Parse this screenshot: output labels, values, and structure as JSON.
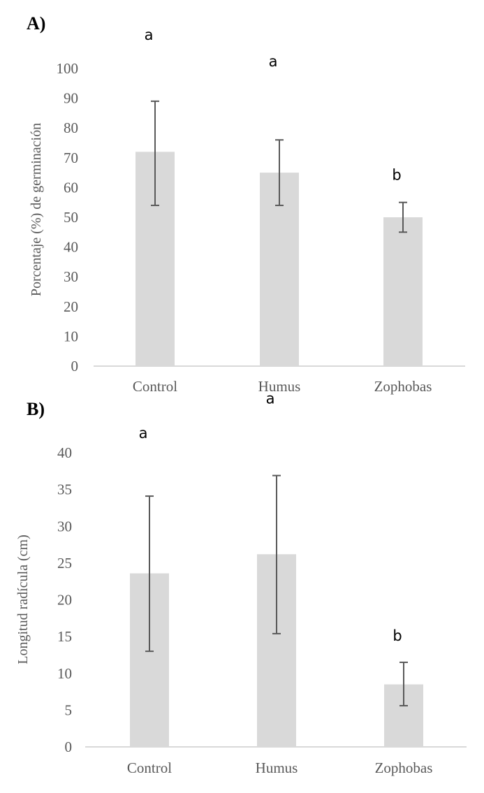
{
  "chart_data": [
    {
      "type": "bar",
      "panel_label": "A)",
      "title": "",
      "xlabel": "",
      "ylabel": "Porcentaje (%) de germinación",
      "categories": [
        "Control",
        "Humus",
        "Zophobas"
      ],
      "values": [
        72,
        65,
        50
      ],
      "error_low": [
        54,
        54,
        45
      ],
      "error_high": [
        89,
        76,
        55
      ],
      "significance_letters": [
        "a",
        "a",
        "b"
      ],
      "ylim": [
        0,
        100
      ],
      "yticks": [
        0,
        10,
        20,
        30,
        40,
        50,
        60,
        70,
        80,
        90,
        100
      ],
      "grid": false,
      "bar_color": "#d9d9d9",
      "error_color": "#595959"
    },
    {
      "type": "bar",
      "panel_label": "B)",
      "title": "",
      "xlabel": "",
      "ylabel": "Longitud radícula (cm)",
      "categories": [
        "Control",
        "Humus",
        "Zophobas"
      ],
      "values": [
        23.6,
        26.2,
        8.5
      ],
      "error_low": [
        13.0,
        15.4,
        5.6
      ],
      "error_high": [
        34.1,
        36.9,
        11.5
      ],
      "significance_letters": [
        "a",
        "a",
        "b"
      ],
      "ylim": [
        0,
        40
      ],
      "yticks": [
        0,
        5,
        10,
        15,
        20,
        25,
        30,
        35,
        40
      ],
      "grid": false,
      "bar_color": "#d9d9d9",
      "error_color": "#595959"
    }
  ]
}
